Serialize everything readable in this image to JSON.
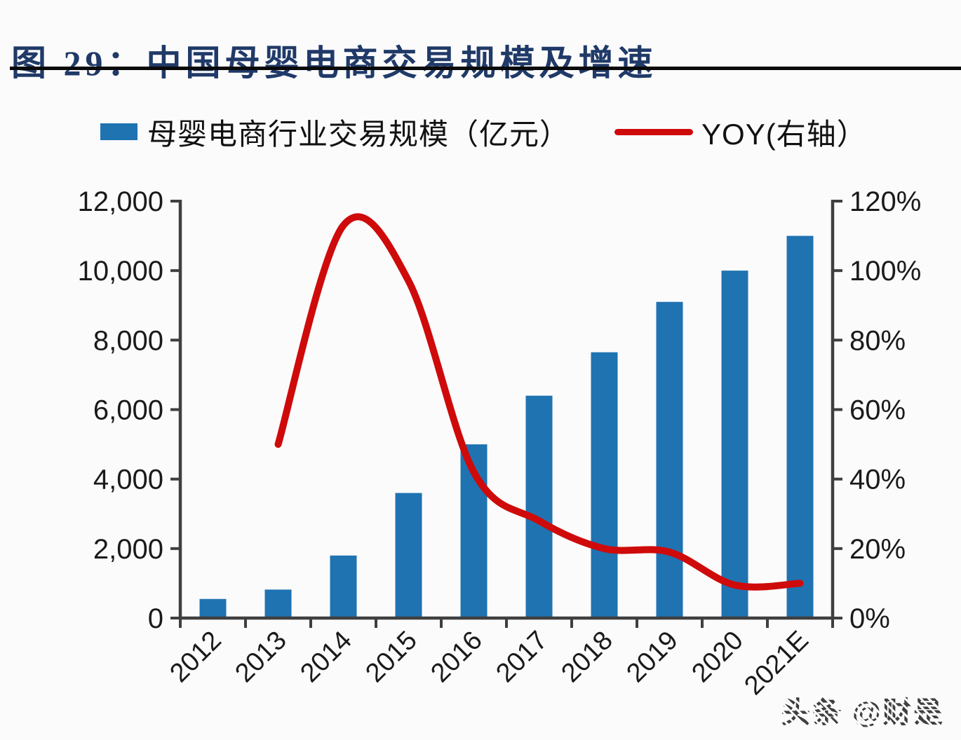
{
  "header": {
    "title": "图 29：中国母婴电商交易规模及增速"
  },
  "legend": {
    "bar_label": "母婴电商行业交易规模（亿元）",
    "line_label": "YOY(右轴）"
  },
  "watermark": {
    "text": "头条 @财是"
  },
  "colors": {
    "bar": "#1f73b1",
    "line": "#cf0a0a",
    "title": "#203a68",
    "axis": "#3f3f3f",
    "tick_text": "#1a1a1a"
  },
  "chart_data": {
    "type": "bar+line combo",
    "title": "中国母婴电商交易规模及增速",
    "categories": [
      "2012",
      "2013",
      "2014",
      "2015",
      "2016",
      "2017",
      "2018",
      "2019",
      "2020",
      "2021E"
    ],
    "series": [
      {
        "name": "母婴电商行业交易规模（亿元）",
        "kind": "bar",
        "axis": "left",
        "values": [
          550,
          820,
          1800,
          3600,
          5000,
          6400,
          7650,
          9100,
          10000,
          11000
        ]
      },
      {
        "name": "YOY(右轴）",
        "kind": "line",
        "axis": "right",
        "values_pct": [
          null,
          50,
          113,
          97,
          42,
          28,
          20,
          19,
          9.5,
          10
        ]
      }
    ],
    "left_axis": {
      "min": 0,
      "max": 12000,
      "step": 2000,
      "tick_labels": [
        "0",
        "2,000",
        "4,000",
        "6,000",
        "8,000",
        "10,000",
        "12,000"
      ]
    },
    "right_axis": {
      "min_pct": 0,
      "max_pct": 120,
      "step_pct": 20,
      "tick_labels": [
        "0%",
        "20%",
        "40%",
        "60%",
        "80%",
        "100%",
        "120%"
      ]
    },
    "grid": false,
    "legend_position": "top",
    "x_label_rotation_deg": -45
  }
}
